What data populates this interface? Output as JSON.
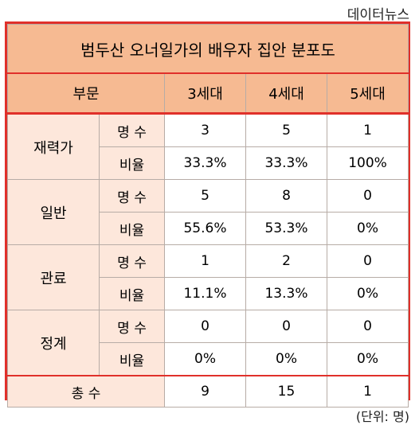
{
  "source": "데이터뉴스",
  "title": "범두산 오너일가의 배우자 집안 분포도",
  "header": {
    "category": "부문",
    "col1": "3세대",
    "col2": "4세대",
    "col3": "5세대"
  },
  "groups": [
    {
      "name": "재력가",
      "count_label": "명 수",
      "counts": [
        "3",
        "5",
        "1"
      ],
      "ratio_label": "비율",
      "ratios": [
        "33.3%",
        "33.3%",
        "100%"
      ]
    },
    {
      "name": "일반",
      "count_label": "명 수",
      "counts": [
        "5",
        "8",
        "0"
      ],
      "ratio_label": "비율",
      "ratios": [
        "55.6%",
        "53.3%",
        "0%"
      ]
    },
    {
      "name": "관료",
      "count_label": "명 수",
      "counts": [
        "1",
        "2",
        "0"
      ],
      "ratio_label": "비율",
      "ratios": [
        "11.1%",
        "13.3%",
        "0%"
      ]
    },
    {
      "name": "정계",
      "count_label": "명 수",
      "counts": [
        "0",
        "0",
        "0"
      ],
      "ratio_label": "비율",
      "ratios": [
        "0%",
        "0%",
        "0%"
      ]
    }
  ],
  "total": {
    "label": "총 수",
    "values": [
      "9",
      "15",
      "1"
    ]
  },
  "unit": "(단위: 명)"
}
